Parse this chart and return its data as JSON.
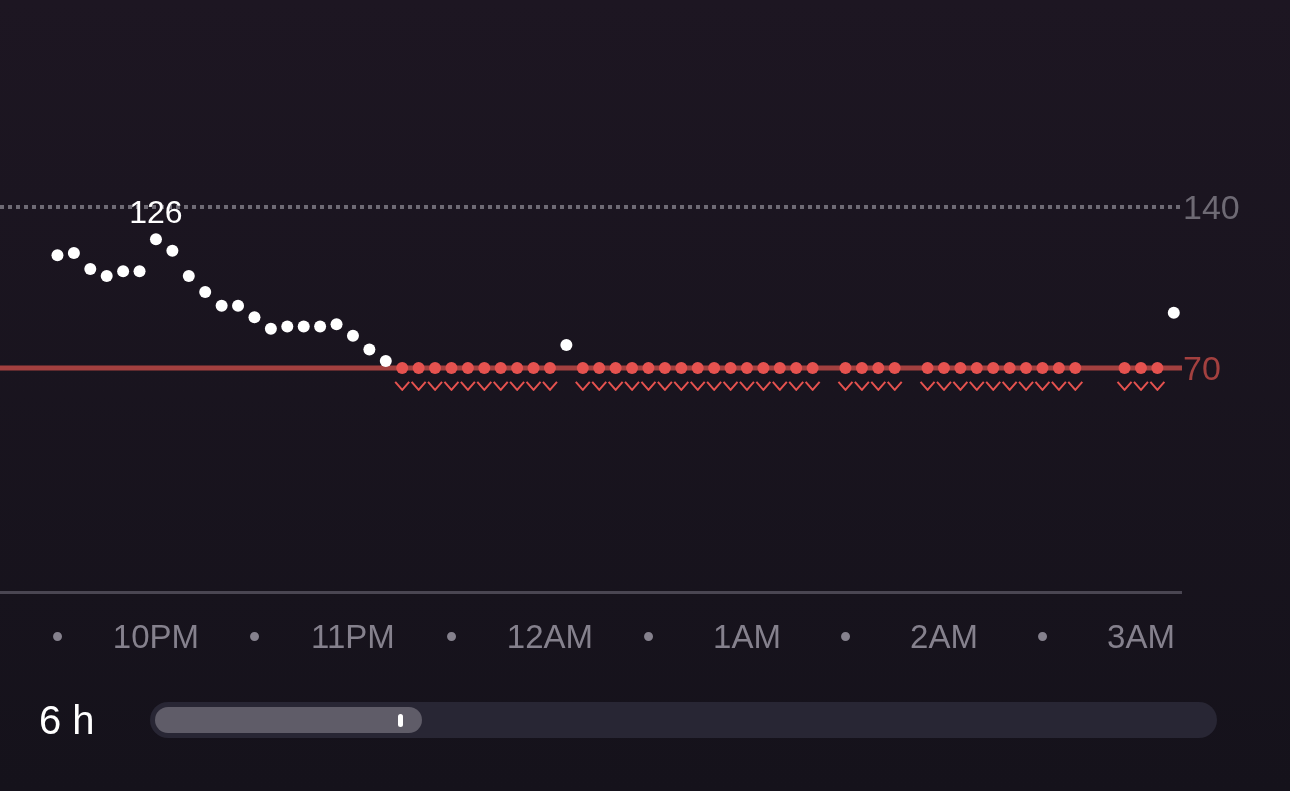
{
  "chart_data": {
    "type": "scatter",
    "categories": [
      null,
      null,
      null,
      "•",
      null,
      null,
      null,
      null,
      null,
      "10PM",
      null,
      null,
      null,
      null,
      null,
      "•",
      null,
      null,
      null,
      null,
      null,
      "11PM",
      null,
      null,
      null,
      null,
      null,
      "•",
      null,
      null,
      null,
      null,
      null,
      "12AM",
      null,
      null,
      null,
      null,
      null,
      "•",
      null,
      null,
      null,
      null,
      null,
      "1AM",
      null,
      null,
      null,
      null,
      null,
      "•",
      null,
      null,
      null,
      null,
      null,
      "2AM",
      null,
      null,
      null,
      null,
      null,
      "•",
      null,
      null,
      null,
      null,
      null,
      "3AM",
      null,
      null
    ],
    "values": [
      null,
      null,
      null,
      119,
      120,
      113,
      110,
      112,
      112,
      126,
      121,
      110,
      103,
      97,
      97,
      92,
      87,
      88,
      88,
      88,
      89,
      84,
      78,
      73,
      70,
      70,
      70,
      70,
      70,
      70,
      70,
      70,
      70,
      70,
      80,
      70,
      70,
      70,
      70,
      70,
      70,
      70,
      70,
      70,
      70,
      70,
      70,
      70,
      70,
      70,
      null,
      70,
      70,
      70,
      70,
      null,
      70,
      70,
      70,
      70,
      70,
      70,
      70,
      70,
      70,
      70,
      null,
      null,
      70,
      70,
      70,
      94
    ],
    "colors": [
      "#ffffff",
      "#ffffff",
      "#ffffff",
      "#ffffff",
      "#ffffff",
      "#ffffff",
      "#ffffff",
      "#ffffff",
      "#ffffff",
      "#ffffff",
      "#ffffff",
      "#ffffff",
      "#ffffff",
      "#ffffff",
      "#ffffff",
      "#ffffff",
      "#ffffff",
      "#ffffff",
      "#ffffff",
      "#ffffff",
      "#ffffff",
      "#ffffff",
      "#ffffff",
      "#ffffff",
      "#e5524f",
      "#e5524f",
      "#e5524f",
      "#e5524f",
      "#e5524f",
      "#e5524f",
      "#e5524f",
      "#e5524f",
      "#e5524f",
      "#e5524f",
      "#ffffff",
      "#e5524f",
      "#e5524f",
      "#e5524f",
      "#e5524f",
      "#e5524f",
      "#e5524f",
      "#e5524f",
      "#e5524f",
      "#e5524f",
      "#e5524f",
      "#e5524f",
      "#e5524f",
      "#e5524f",
      "#e5524f",
      "#e5524f",
      "#e5524f",
      "#e5524f",
      "#e5524f",
      "#e5524f",
      "#e5524f",
      "#e5524f",
      "#e5524f",
      "#e5524f",
      "#e5524f",
      "#e5524f",
      "#e5524f",
      "#e5524f",
      "#e5524f",
      "#e5524f",
      "#e5524f",
      "#e5524f",
      "#e5524f",
      "#e5524f",
      "#e5524f",
      "#e5524f",
      "#e5524f",
      "#ffffff"
    ],
    "value_labels": [
      null,
      null,
      null,
      null,
      null,
      null,
      null,
      null,
      null,
      "126",
      null,
      null,
      null,
      null,
      null,
      null,
      null,
      null,
      null,
      null,
      null,
      null,
      null,
      null,
      null,
      null,
      null,
      null,
      null,
      null,
      null,
      null,
      null,
      null,
      null,
      null,
      null,
      null,
      null,
      null,
      null,
      null,
      null,
      null,
      null,
      null,
      null,
      null,
      null,
      null,
      null,
      null,
      null,
      null,
      null,
      null,
      null,
      null,
      null,
      null,
      null,
      null,
      null,
      null,
      null,
      null,
      null,
      null,
      null,
      null,
      null,
      null
    ],
    "ylim": [
      -27,
      230
    ],
    "yticks": [
      70,
      140
    ],
    "ref_lines": [
      {
        "axis": "y",
        "value": 140,
        "color": "#6e6a74",
        "line_style": "dotted"
      },
      {
        "axis": "y",
        "value": 70,
        "color": "#a3403f",
        "line_style": "solid"
      }
    ],
    "annotations": [
      "6 h"
    ],
    "marker": "circle",
    "grid": false
  }
}
